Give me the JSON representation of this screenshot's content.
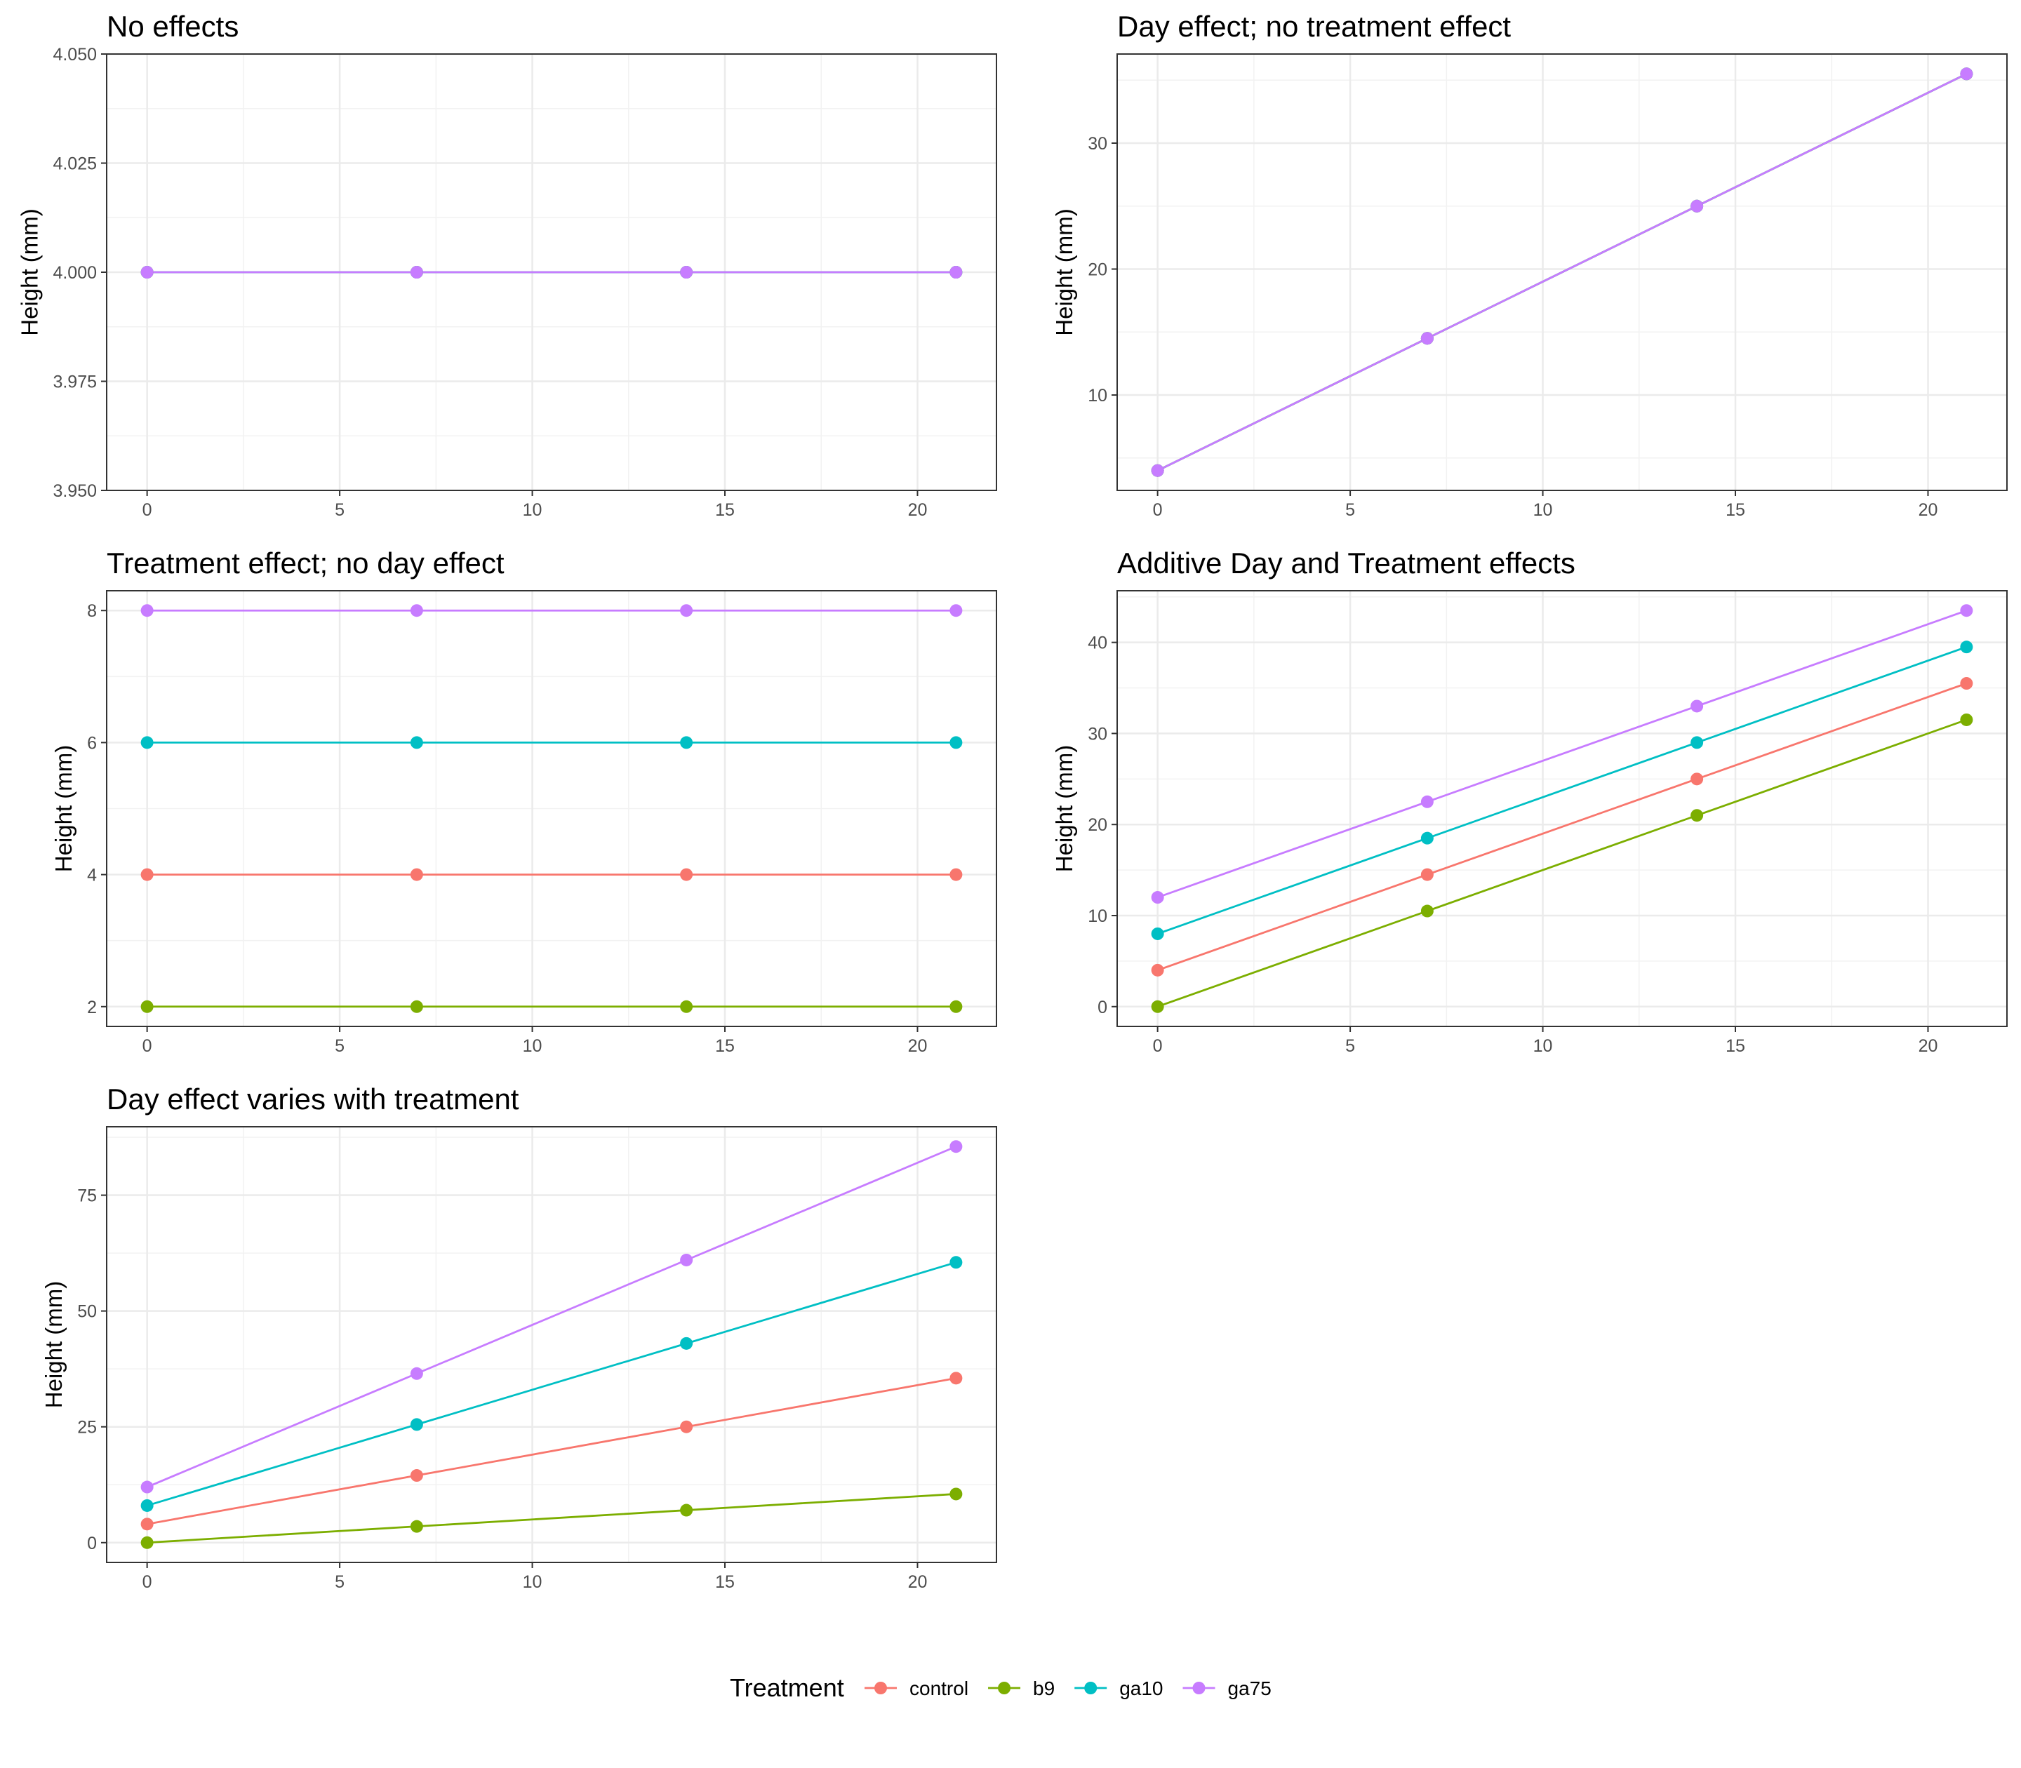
{
  "legend": {
    "title": "Treatment",
    "entries": [
      {
        "name": "control",
        "color": "#F8766D"
      },
      {
        "name": "b9",
        "color": "#7CAE00"
      },
      {
        "name": "ga10",
        "color": "#00BFC4"
      },
      {
        "name": "ga75",
        "color": "#C77CFF"
      }
    ]
  },
  "chart_data": [
    {
      "type": "line",
      "title": "No effects",
      "xlabel": "",
      "ylabel": "Height (mm)",
      "x": [
        0,
        7,
        14,
        21
      ],
      "xlim": [
        -1.05,
        22.05
      ],
      "xticks": [
        0,
        5,
        10,
        15,
        20
      ],
      "xtick_labels": [
        "0",
        "5",
        "10",
        "15",
        "20"
      ],
      "ylim": [
        3.95,
        4.05
      ],
      "yticks": [
        3.95,
        3.975,
        4.0,
        4.025,
        4.05
      ],
      "ytick_labels": [
        "3.950",
        "3.975",
        "4.000",
        "4.025",
        "4.050"
      ],
      "grid": true,
      "series": [
        {
          "name": "control",
          "values": [
            4,
            4,
            4,
            4
          ]
        },
        {
          "name": "b9",
          "values": [
            4,
            4,
            4,
            4
          ]
        },
        {
          "name": "ga10",
          "values": [
            4,
            4,
            4,
            4
          ]
        },
        {
          "name": "ga75",
          "values": [
            4,
            4,
            4,
            4
          ]
        }
      ]
    },
    {
      "type": "line",
      "title": "Day effect; no treatment effect",
      "xlabel": "",
      "ylabel": "Height (mm)",
      "x": [
        0,
        7,
        14,
        21
      ],
      "xlim": [
        -1.05,
        22.05
      ],
      "xticks": [
        0,
        5,
        10,
        15,
        20
      ],
      "xtick_labels": [
        "0",
        "5",
        "10",
        "15",
        "20"
      ],
      "ylim": [
        2.425,
        37.075
      ],
      "yticks": [
        10,
        20,
        30
      ],
      "ytick_labels": [
        "10",
        "20",
        "30"
      ],
      "grid": true,
      "series": [
        {
          "name": "control",
          "values": [
            4,
            14.5,
            25,
            35.5
          ]
        },
        {
          "name": "b9",
          "values": [
            4,
            14.5,
            25,
            35.5
          ]
        },
        {
          "name": "ga10",
          "values": [
            4,
            14.5,
            25,
            35.5
          ]
        },
        {
          "name": "ga75",
          "values": [
            4,
            14.5,
            25,
            35.5
          ]
        }
      ]
    },
    {
      "type": "line",
      "title": "Treatment effect; no day effect",
      "xlabel": "",
      "ylabel": "Height (mm)",
      "x": [
        0,
        7,
        14,
        21
      ],
      "xlim": [
        -1.05,
        22.05
      ],
      "xticks": [
        0,
        5,
        10,
        15,
        20
      ],
      "xtick_labels": [
        "0",
        "5",
        "10",
        "15",
        "20"
      ],
      "ylim": [
        1.7,
        8.3
      ],
      "yticks": [
        2,
        4,
        6,
        8
      ],
      "ytick_labels": [
        "2",
        "4",
        "6",
        "8"
      ],
      "grid": true,
      "series": [
        {
          "name": "control",
          "values": [
            4,
            4,
            4,
            4
          ]
        },
        {
          "name": "b9",
          "values": [
            2,
            2,
            2,
            2
          ]
        },
        {
          "name": "ga10",
          "values": [
            6,
            6,
            6,
            6
          ]
        },
        {
          "name": "ga75",
          "values": [
            8,
            8,
            8,
            8
          ]
        }
      ]
    },
    {
      "type": "line",
      "title": "Additive Day and Treatment effects",
      "xlabel": "",
      "ylabel": "Height (mm)",
      "x": [
        0,
        7,
        14,
        21
      ],
      "xlim": [
        -1.05,
        22.05
      ],
      "xticks": [
        0,
        5,
        10,
        15,
        20
      ],
      "xtick_labels": [
        "0",
        "5",
        "10",
        "15",
        "20"
      ],
      "ylim": [
        -2.175,
        45.675
      ],
      "yticks": [
        0,
        10,
        20,
        30,
        40
      ],
      "ytick_labels": [
        "0",
        "10",
        "20",
        "30",
        "40"
      ],
      "grid": true,
      "series": [
        {
          "name": "control",
          "values": [
            4,
            14.5,
            25,
            35.5
          ]
        },
        {
          "name": "b9",
          "values": [
            0,
            10.5,
            21,
            31.5
          ]
        },
        {
          "name": "ga10",
          "values": [
            8,
            18.5,
            29,
            39.5
          ]
        },
        {
          "name": "ga75",
          "values": [
            12,
            22.5,
            33,
            43.5
          ]
        }
      ]
    },
    {
      "type": "line",
      "title": "Day effect varies with treatment",
      "xlabel": "",
      "ylabel": "Height (mm)",
      "x": [
        0,
        7,
        14,
        21
      ],
      "xlim": [
        -1.05,
        22.05
      ],
      "xticks": [
        0,
        5,
        10,
        15,
        20
      ],
      "xtick_labels": [
        "0",
        "5",
        "10",
        "15",
        "20"
      ],
      "ylim": [
        -4.275,
        89.775
      ],
      "yticks": [
        0,
        25,
        50,
        75
      ],
      "ytick_labels": [
        "0",
        "25",
        "50",
        "75"
      ],
      "grid": true,
      "series": [
        {
          "name": "control",
          "values": [
            4,
            14.5,
            25,
            35.5
          ]
        },
        {
          "name": "b9",
          "values": [
            0,
            3.5,
            7,
            10.5
          ]
        },
        {
          "name": "ga10",
          "values": [
            8,
            25.5,
            43,
            60.5
          ]
        },
        {
          "name": "ga75",
          "values": [
            12,
            36.5,
            61,
            85.5
          ]
        }
      ]
    }
  ]
}
